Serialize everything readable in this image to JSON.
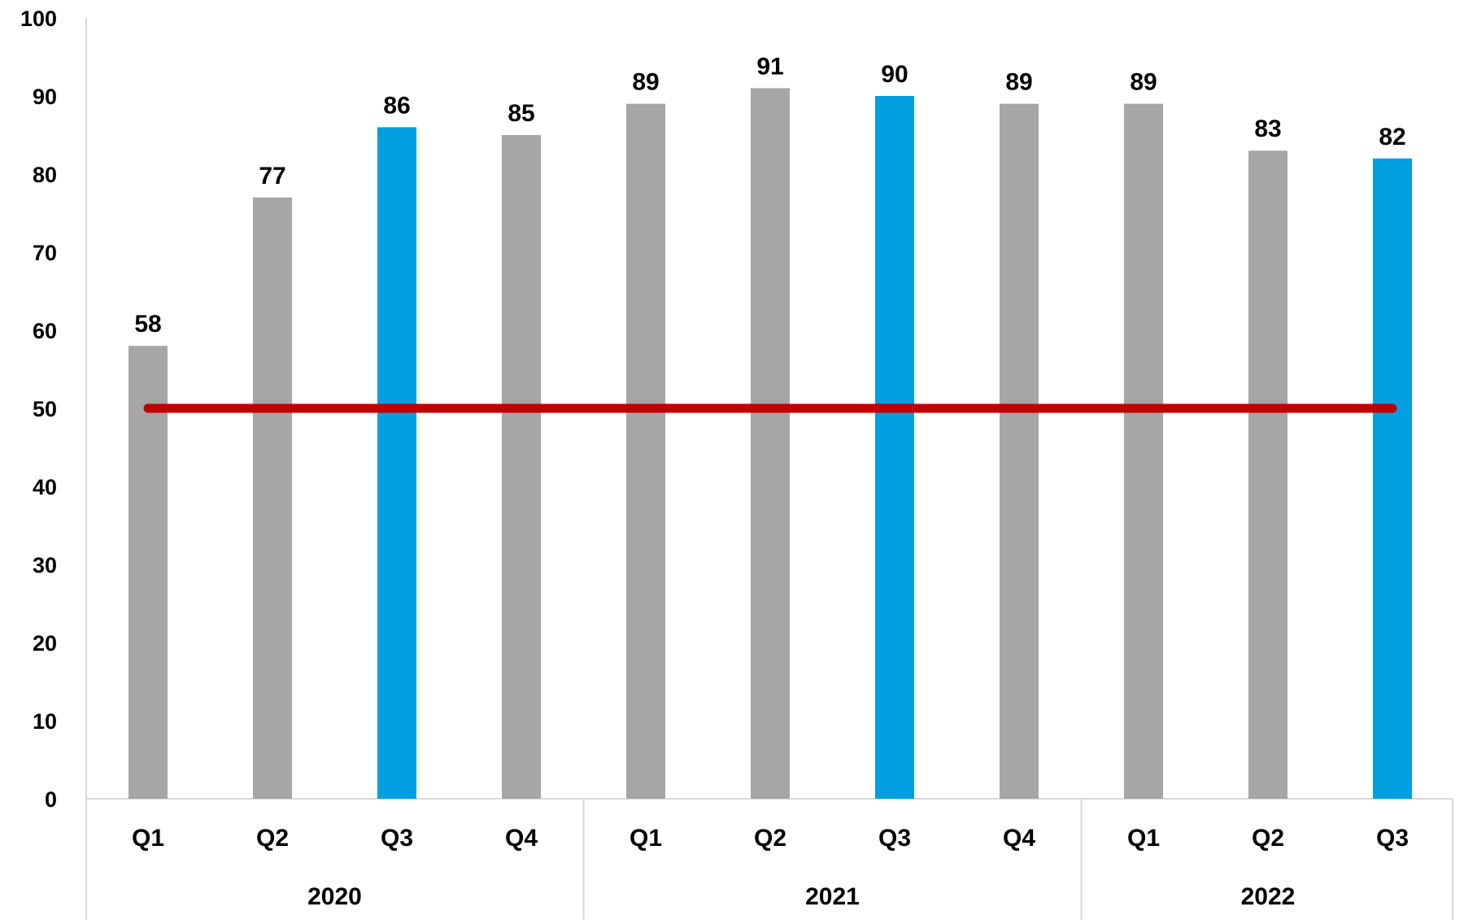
{
  "chart_data": {
    "type": "bar",
    "title": "",
    "xlabel": "",
    "ylabel": "",
    "ylim": [
      0,
      100
    ],
    "yticks": [
      0,
      10,
      20,
      30,
      40,
      50,
      60,
      70,
      80,
      90,
      100
    ],
    "grid": false,
    "legend": "none",
    "groups": [
      {
        "label": "2020",
        "categories": [
          "Q1",
          "Q2",
          "Q3",
          "Q4"
        ]
      },
      {
        "label": "2021",
        "categories": [
          "Q1",
          "Q2",
          "Q3",
          "Q4"
        ]
      },
      {
        "label": "2022",
        "categories": [
          "Q1",
          "Q2",
          "Q3"
        ]
      }
    ],
    "categories": [
      "Q1",
      "Q2",
      "Q3",
      "Q4",
      "Q1",
      "Q2",
      "Q3",
      "Q4",
      "Q1",
      "Q2",
      "Q3"
    ],
    "values": [
      58,
      77,
      86,
      85,
      89,
      91,
      90,
      89,
      89,
      83,
      82
    ],
    "highlighted": [
      false,
      false,
      true,
      false,
      false,
      false,
      true,
      false,
      false,
      false,
      true
    ],
    "data_labels": true,
    "reference_line": {
      "value": 50,
      "color": "#C00000"
    },
    "colors": {
      "bar": "#A6A6A6",
      "bar_highlight": "#009FDF",
      "axis": "#D9D9D9"
    }
  }
}
